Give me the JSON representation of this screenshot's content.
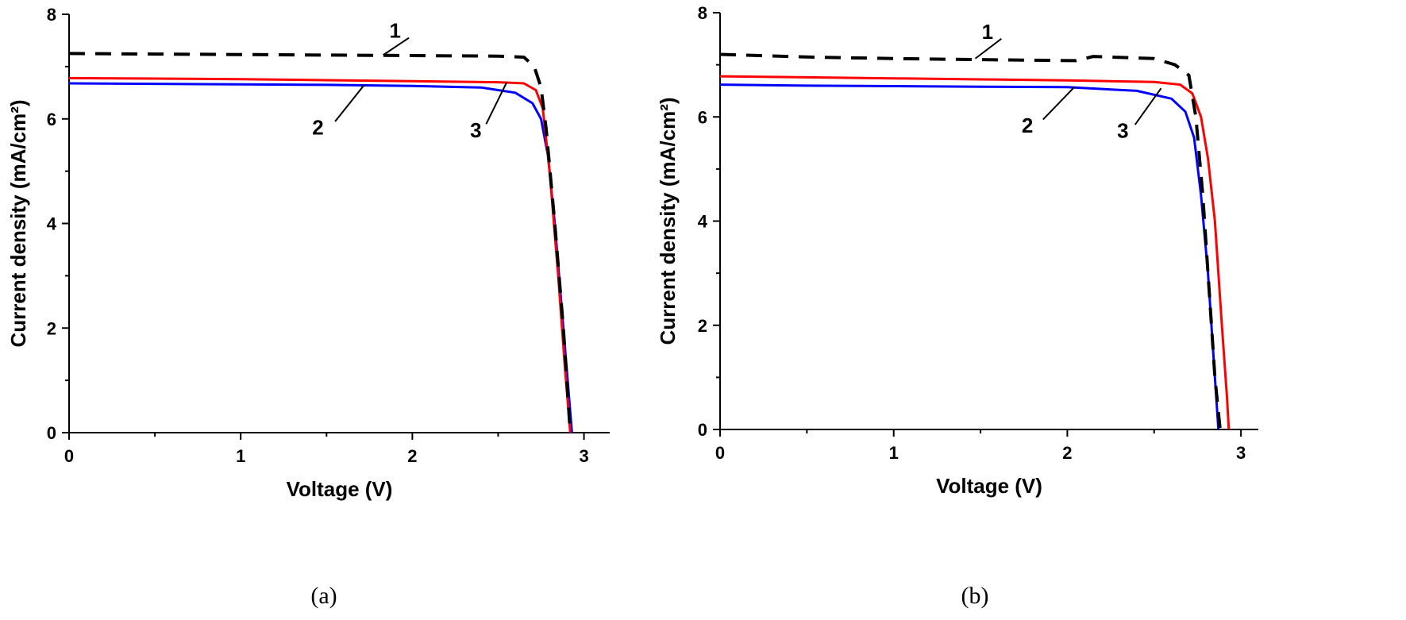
{
  "chart_data": [
    {
      "type": "line",
      "caption": "(a)",
      "xlabel": "Voltage (V)",
      "ylabel": "Current density (mA/cm²)",
      "xlim": [
        0,
        3.15
      ],
      "ylim": [
        0,
        8
      ],
      "xticks": [
        0,
        1,
        2,
        3
      ],
      "yticks": [
        0,
        2,
        4,
        6,
        8
      ],
      "grid": false,
      "series": [
        {
          "name": "1",
          "color": "#000000",
          "dash": true,
          "x": [
            0,
            0.5,
            1.0,
            1.5,
            2.0,
            2.5,
            2.65,
            2.71,
            2.75,
            2.78,
            2.83,
            2.88,
            2.92
          ],
          "y": [
            7.25,
            7.24,
            7.23,
            7.22,
            7.21,
            7.2,
            7.18,
            7.0,
            6.6,
            5.8,
            4.0,
            2.0,
            0
          ]
        },
        {
          "name": "2",
          "color": "#0000ff",
          "dash": false,
          "x": [
            0,
            0.5,
            1.0,
            1.5,
            2.0,
            2.4,
            2.6,
            2.7,
            2.75,
            2.79,
            2.83,
            2.88,
            2.91,
            2.93
          ],
          "y": [
            6.68,
            6.67,
            6.66,
            6.65,
            6.63,
            6.6,
            6.5,
            6.3,
            6.0,
            5.3,
            4.0,
            2.0,
            0.8,
            0
          ]
        },
        {
          "name": "3",
          "color": "#ff0000",
          "dash": false,
          "x": [
            0,
            0.5,
            1.0,
            1.5,
            2.0,
            2.5,
            2.65,
            2.72,
            2.76,
            2.8,
            2.85,
            2.89,
            2.92
          ],
          "y": [
            6.78,
            6.77,
            6.76,
            6.74,
            6.72,
            6.7,
            6.68,
            6.55,
            6.2,
            5.0,
            3.0,
            1.2,
            0
          ]
        }
      ]
    },
    {
      "type": "line",
      "caption": "(b)",
      "xlabel": "Voltage (V)",
      "ylabel": "Current density (mA/cm²)",
      "xlim": [
        0,
        3.1
      ],
      "ylim": [
        0,
        8
      ],
      "xticks": [
        0,
        1,
        2,
        3
      ],
      "yticks": [
        0,
        2,
        4,
        6,
        8
      ],
      "grid": false,
      "series": [
        {
          "name": "1",
          "color": "#000000",
          "dash": true,
          "x": [
            0,
            0.5,
            1.0,
            1.5,
            2.05,
            2.15,
            2.5,
            2.62,
            2.7,
            2.74,
            2.78,
            2.82,
            2.85,
            2.88
          ],
          "y": [
            7.2,
            7.15,
            7.12,
            7.1,
            7.08,
            7.16,
            7.12,
            7.0,
            6.8,
            6.0,
            4.5,
            2.5,
            1.0,
            0
          ]
        },
        {
          "name": "2",
          "color": "#0000ff",
          "dash": false,
          "x": [
            0,
            0.5,
            1.0,
            1.5,
            2.0,
            2.4,
            2.6,
            2.68,
            2.73,
            2.77,
            2.81,
            2.84,
            2.86,
            2.87
          ],
          "y": [
            6.62,
            6.6,
            6.59,
            6.58,
            6.57,
            6.5,
            6.35,
            6.1,
            5.6,
            4.5,
            3.0,
            1.5,
            0.5,
            0
          ]
        },
        {
          "name": "3",
          "color": "#ff0000",
          "dash": false,
          "x": [
            0,
            0.5,
            1.0,
            1.5,
            2.0,
            2.5,
            2.65,
            2.72,
            2.77,
            2.81,
            2.85,
            2.89,
            2.92,
            2.93
          ],
          "y": [
            6.78,
            6.76,
            6.74,
            6.72,
            6.7,
            6.67,
            6.62,
            6.45,
            6.0,
            5.2,
            4.0,
            2.0,
            0.6,
            0
          ]
        }
      ]
    }
  ]
}
